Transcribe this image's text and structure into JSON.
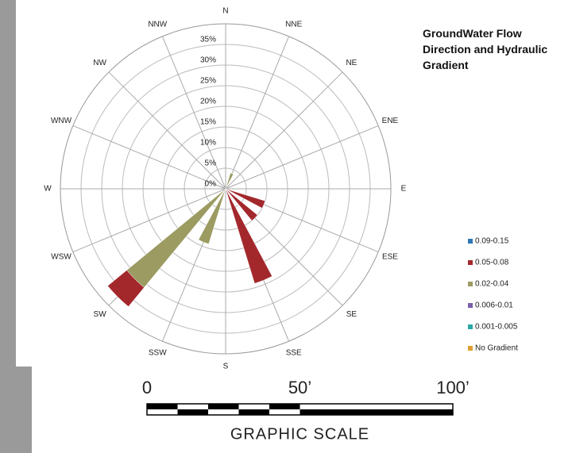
{
  "chart_data": {
    "type": "rose",
    "title": "GroundWater Flow Direction and Hydraulic Gradient",
    "categories": [
      "N",
      "NNE",
      "NE",
      "ENE",
      "E",
      "ESE",
      "SE",
      "SSE",
      "S",
      "SSW",
      "SW",
      "WSW",
      "W",
      "WNW",
      "NW",
      "NNW"
    ],
    "series": [
      {
        "name": "0.09-0.15",
        "color": "#2e75b6",
        "values": [
          null,
          null,
          null,
          null,
          null,
          null,
          null,
          null,
          null,
          null,
          null,
          null,
          null,
          null,
          null,
          null
        ]
      },
      {
        "name": "0.05-0.08",
        "color": "#a3282c",
        "values": [
          null,
          null,
          null,
          null,
          null,
          10,
          10,
          24,
          null,
          null,
          6,
          null,
          null,
          null,
          null,
          null
        ]
      },
      {
        "name": "0.02-0.04",
        "color": "#9b9b62",
        "values": [
          null,
          4,
          null,
          null,
          null,
          null,
          null,
          null,
          null,
          14,
          31,
          null,
          null,
          null,
          null,
          null
        ]
      },
      {
        "name": "0.006-0.01",
        "color": "#7b5fa8",
        "values": [
          null,
          null,
          null,
          null,
          null,
          null,
          null,
          null,
          null,
          null,
          null,
          null,
          null,
          null,
          null,
          null
        ]
      },
      {
        "name": "0.001-0.005",
        "color": "#2aa8a8",
        "values": [
          null,
          null,
          null,
          null,
          null,
          null,
          null,
          null,
          null,
          null,
          null,
          null,
          null,
          null,
          null,
          null
        ]
      },
      {
        "name": "No Gradient",
        "color": "#e0a030",
        "values": [
          null,
          null,
          null,
          null,
          null,
          null,
          null,
          null,
          null,
          null,
          null,
          null,
          null,
          null,
          null,
          null
        ]
      }
    ],
    "rlim": [
      0,
      40
    ],
    "rticks": [
      {
        "value": 0,
        "label": "0%"
      },
      {
        "value": 5,
        "label": "5%"
      },
      {
        "value": 10,
        "label": "10%"
      },
      {
        "value": 15,
        "label": "15%"
      },
      {
        "value": 20,
        "label": "20%"
      },
      {
        "value": 25,
        "label": "25%"
      },
      {
        "value": 30,
        "label": "30%"
      },
      {
        "value": 35,
        "label": "35%"
      }
    ],
    "grid": true,
    "legend": "lower-right"
  },
  "graphic_scale": {
    "labels": [
      "0",
      "50’",
      "100’"
    ],
    "title": "GRAPHIC SCALE"
  }
}
